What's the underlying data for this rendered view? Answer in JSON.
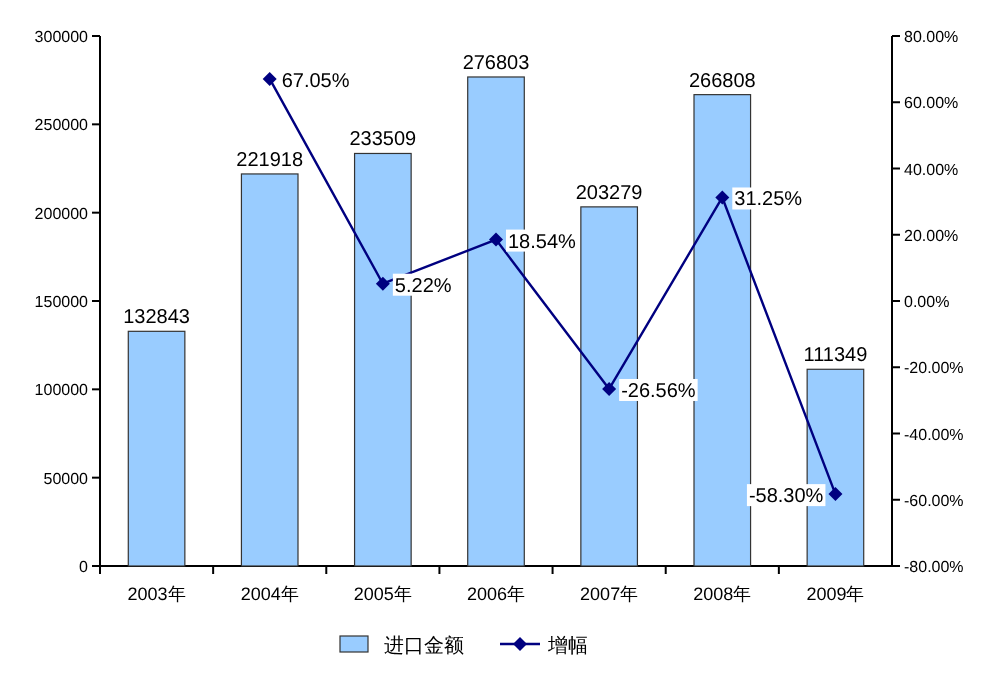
{
  "chart_data": {
    "type": "bar",
    "categories": [
      "2003年",
      "2004年",
      "2005年",
      "2006年",
      "2007年",
      "2008年",
      "2009年"
    ],
    "series": [
      {
        "name": "进口金额",
        "color": "#99ccff",
        "values": [
          132843,
          221918,
          233509,
          276803,
          203279,
          266808,
          111349
        ]
      },
      {
        "name": "增幅",
        "type": "line",
        "axis": "y2",
        "color": "#000080",
        "marker": "diamond",
        "values": [
          null,
          67.05,
          5.22,
          18.54,
          -26.56,
          31.25,
          -58.3
        ],
        "value_labels": [
          null,
          "67.05%",
          "5.22%",
          "18.54%",
          "-26.56%",
          "31.25%",
          "-58.30%"
        ]
      }
    ],
    "data_labels": true,
    "ylim": [
      0,
      300000
    ],
    "yticks": [
      0,
      50000,
      100000,
      150000,
      200000,
      250000,
      300000
    ],
    "y2lim": [
      -80,
      80
    ],
    "y2ticks": [
      {
        "value": -80,
        "label": "-80.00%"
      },
      {
        "value": -60,
        "label": "-60.00%"
      },
      {
        "value": -40,
        "label": "-40.00%"
      },
      {
        "value": -20,
        "label": "-20.00%"
      },
      {
        "value": 0,
        "label": "0.00%"
      },
      {
        "value": 20,
        "label": "20.00%"
      },
      {
        "value": 40,
        "label": "40.00%"
      },
      {
        "value": 60,
        "label": "60.00%"
      },
      {
        "value": 80,
        "label": "80.00%"
      }
    ],
    "legend": "bottom",
    "grid": false
  }
}
